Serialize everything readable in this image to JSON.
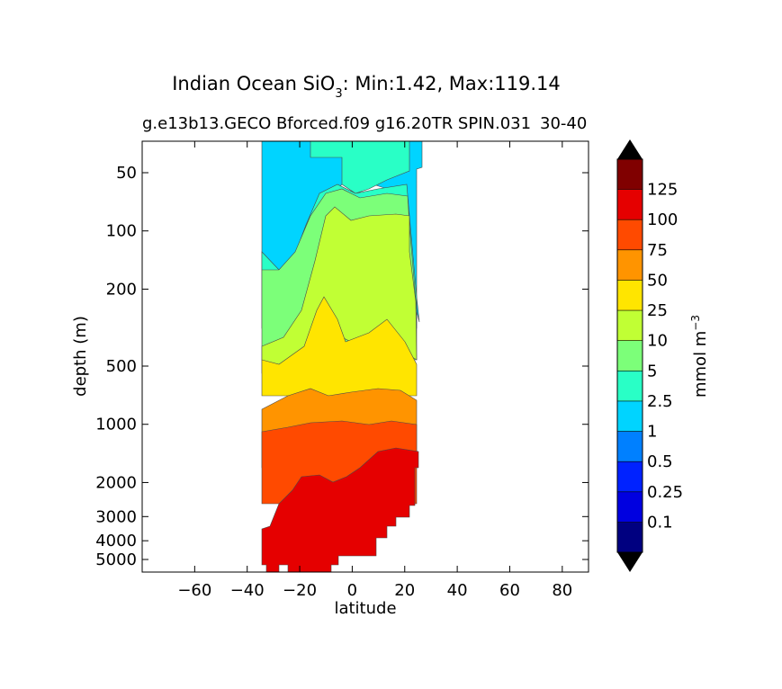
{
  "chart_data": {
    "type": "contour",
    "title_prefix": "Indian Ocean SiO",
    "title_subscript": "3",
    "title_suffix": ": Min:1.42, Max:119.14",
    "subtitle_left": "g.e13b13.GECO Bforced.f09 g16.20TR SPIN.031",
    "subtitle_right": "30-40",
    "xlabel": "latitude",
    "ylabel": "depth (m)",
    "xlim": [
      -80,
      90
    ],
    "xticks": [
      -60,
      -40,
      -20,
      0,
      20,
      40,
      60,
      80
    ],
    "xtick_labels": [
      "−60",
      "−40",
      "−20",
      "0",
      "20",
      "40",
      "60",
      "80"
    ],
    "yticks": [
      50,
      100,
      200,
      500,
      1000,
      2000,
      3000,
      4000,
      5000
    ],
    "ytick_labels": [
      "50",
      "100",
      "200",
      "500",
      "1000",
      "2000",
      "3000",
      "4000",
      "5000"
    ],
    "colorbar": {
      "label": "mmol m",
      "label_superscript": "−3",
      "levels": [
        "0.1",
        "0.25",
        "0.5",
        "1",
        "2.5",
        "5",
        "10",
        "25",
        "50",
        "75",
        "100",
        "125"
      ],
      "colors": [
        "#000080",
        "#0000e0",
        "#0022ff",
        "#0080ff",
        "#00d4ff",
        "#29ffc6",
        "#7cff79",
        "#c1ff34",
        "#ffe500",
        "#ff9400",
        "#ff4a00",
        "#e50000",
        "#800000"
      ],
      "under_color": "#000000",
      "over_color": "#000000"
    },
    "field_bands": [
      {
        "name": "1-2.5",
        "color": "#00d4ff"
      },
      {
        "name": "2.5-5",
        "color": "#29ffc6"
      },
      {
        "name": "5-10",
        "color": "#7cff79"
      },
      {
        "name": "10-25",
        "color": "#c1ff34"
      },
      {
        "name": "25-50",
        "color": "#ffe500"
      },
      {
        "name": "50-75",
        "color": "#ff9400"
      },
      {
        "name": "75-100",
        "color": "#ff4a00"
      },
      {
        "name": "100-125",
        "color": "#e50000"
      }
    ]
  }
}
